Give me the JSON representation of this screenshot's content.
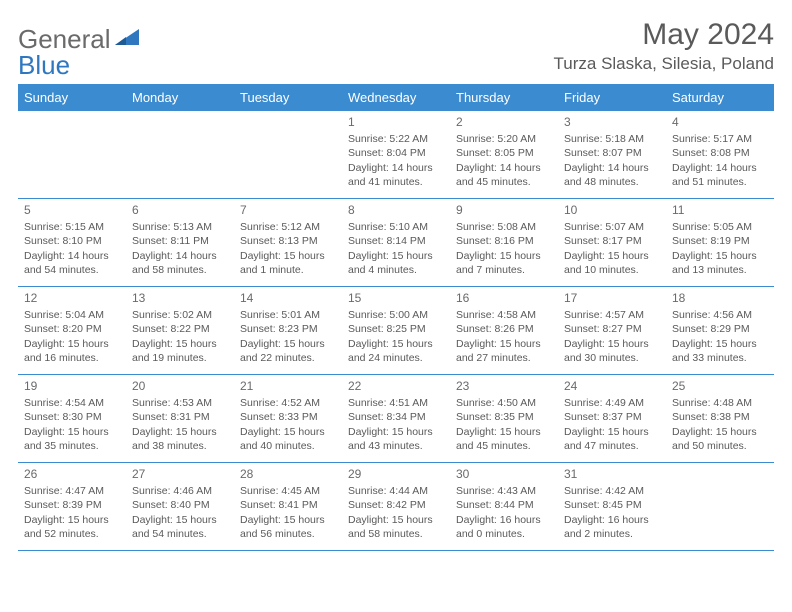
{
  "logo": {
    "text1": "General",
    "text2": "Blue"
  },
  "title": "May 2024",
  "location": "Turza Slaska, Silesia, Poland",
  "colors": {
    "header_bg": "#3b8bd0",
    "header_text": "#ffffff",
    "border": "#3b8bd0",
    "text": "#5a5a5a",
    "logo_gray": "#6a6a6a",
    "logo_blue": "#2f78c0",
    "background": "#ffffff"
  },
  "weekdays": [
    "Sunday",
    "Monday",
    "Tuesday",
    "Wednesday",
    "Thursday",
    "Friday",
    "Saturday"
  ],
  "weeks": [
    [
      null,
      null,
      null,
      {
        "n": "1",
        "sr": "5:22 AM",
        "ss": "8:04 PM",
        "dl": "14 hours and 41 minutes."
      },
      {
        "n": "2",
        "sr": "5:20 AM",
        "ss": "8:05 PM",
        "dl": "14 hours and 45 minutes."
      },
      {
        "n": "3",
        "sr": "5:18 AM",
        "ss": "8:07 PM",
        "dl": "14 hours and 48 minutes."
      },
      {
        "n": "4",
        "sr": "5:17 AM",
        "ss": "8:08 PM",
        "dl": "14 hours and 51 minutes."
      }
    ],
    [
      {
        "n": "5",
        "sr": "5:15 AM",
        "ss": "8:10 PM",
        "dl": "14 hours and 54 minutes."
      },
      {
        "n": "6",
        "sr": "5:13 AM",
        "ss": "8:11 PM",
        "dl": "14 hours and 58 minutes."
      },
      {
        "n": "7",
        "sr": "5:12 AM",
        "ss": "8:13 PM",
        "dl": "15 hours and 1 minute."
      },
      {
        "n": "8",
        "sr": "5:10 AM",
        "ss": "8:14 PM",
        "dl": "15 hours and 4 minutes."
      },
      {
        "n": "9",
        "sr": "5:08 AM",
        "ss": "8:16 PM",
        "dl": "15 hours and 7 minutes."
      },
      {
        "n": "10",
        "sr": "5:07 AM",
        "ss": "8:17 PM",
        "dl": "15 hours and 10 minutes."
      },
      {
        "n": "11",
        "sr": "5:05 AM",
        "ss": "8:19 PM",
        "dl": "15 hours and 13 minutes."
      }
    ],
    [
      {
        "n": "12",
        "sr": "5:04 AM",
        "ss": "8:20 PM",
        "dl": "15 hours and 16 minutes."
      },
      {
        "n": "13",
        "sr": "5:02 AM",
        "ss": "8:22 PM",
        "dl": "15 hours and 19 minutes."
      },
      {
        "n": "14",
        "sr": "5:01 AM",
        "ss": "8:23 PM",
        "dl": "15 hours and 22 minutes."
      },
      {
        "n": "15",
        "sr": "5:00 AM",
        "ss": "8:25 PM",
        "dl": "15 hours and 24 minutes."
      },
      {
        "n": "16",
        "sr": "4:58 AM",
        "ss": "8:26 PM",
        "dl": "15 hours and 27 minutes."
      },
      {
        "n": "17",
        "sr": "4:57 AM",
        "ss": "8:27 PM",
        "dl": "15 hours and 30 minutes."
      },
      {
        "n": "18",
        "sr": "4:56 AM",
        "ss": "8:29 PM",
        "dl": "15 hours and 33 minutes."
      }
    ],
    [
      {
        "n": "19",
        "sr": "4:54 AM",
        "ss": "8:30 PM",
        "dl": "15 hours and 35 minutes."
      },
      {
        "n": "20",
        "sr": "4:53 AM",
        "ss": "8:31 PM",
        "dl": "15 hours and 38 minutes."
      },
      {
        "n": "21",
        "sr": "4:52 AM",
        "ss": "8:33 PM",
        "dl": "15 hours and 40 minutes."
      },
      {
        "n": "22",
        "sr": "4:51 AM",
        "ss": "8:34 PM",
        "dl": "15 hours and 43 minutes."
      },
      {
        "n": "23",
        "sr": "4:50 AM",
        "ss": "8:35 PM",
        "dl": "15 hours and 45 minutes."
      },
      {
        "n": "24",
        "sr": "4:49 AM",
        "ss": "8:37 PM",
        "dl": "15 hours and 47 minutes."
      },
      {
        "n": "25",
        "sr": "4:48 AM",
        "ss": "8:38 PM",
        "dl": "15 hours and 50 minutes."
      }
    ],
    [
      {
        "n": "26",
        "sr": "4:47 AM",
        "ss": "8:39 PM",
        "dl": "15 hours and 52 minutes."
      },
      {
        "n": "27",
        "sr": "4:46 AM",
        "ss": "8:40 PM",
        "dl": "15 hours and 54 minutes."
      },
      {
        "n": "28",
        "sr": "4:45 AM",
        "ss": "8:41 PM",
        "dl": "15 hours and 56 minutes."
      },
      {
        "n": "29",
        "sr": "4:44 AM",
        "ss": "8:42 PM",
        "dl": "15 hours and 58 minutes."
      },
      {
        "n": "30",
        "sr": "4:43 AM",
        "ss": "8:44 PM",
        "dl": "16 hours and 0 minutes."
      },
      {
        "n": "31",
        "sr": "4:42 AM",
        "ss": "8:45 PM",
        "dl": "16 hours and 2 minutes."
      },
      null
    ]
  ],
  "labels": {
    "sunrise": "Sunrise:",
    "sunset": "Sunset:",
    "daylight": "Daylight:"
  }
}
